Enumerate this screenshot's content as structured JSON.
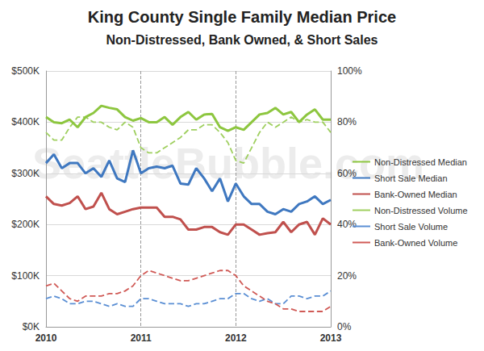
{
  "chart_data": {
    "type": "line",
    "title": "King County Single Family Median Price",
    "subtitle": "Non-Distressed, Bank Owned, & Short Sales",
    "annotations": [
      "SeattleBubble.com"
    ],
    "categories": [
      "2010",
      null,
      null,
      null,
      null,
      null,
      null,
      null,
      null,
      null,
      null,
      null,
      "2011",
      null,
      null,
      null,
      null,
      null,
      null,
      null,
      null,
      null,
      null,
      null,
      "2012",
      null,
      null,
      null,
      null,
      null,
      null,
      null,
      null,
      null,
      null,
      null,
      "2013"
    ],
    "ylim": [
      0,
      500000
    ],
    "yticks": [
      {
        "value": 0,
        "label": "$0K"
      },
      {
        "value": 100000,
        "label": "$100K"
      },
      {
        "value": 200000,
        "label": "$200K"
      },
      {
        "value": 300000,
        "label": "$300K"
      },
      {
        "value": 400000,
        "label": "$400K"
      },
      {
        "value": 500000,
        "label": "$500K"
      }
    ],
    "y2lim": [
      0,
      100
    ],
    "y2ticks": [
      {
        "value": 0,
        "label": "0%"
      },
      {
        "value": 20,
        "label": "20%"
      },
      {
        "value": 40,
        "label": "40%"
      },
      {
        "value": 60,
        "label": "60%"
      },
      {
        "value": 80,
        "label": "80%"
      },
      {
        "value": 100,
        "label": "100%"
      }
    ],
    "grid": true,
    "legend": "right",
    "series": [
      {
        "name": "Non-Distressed Median",
        "color": "#8dc63f",
        "line_style": "solid",
        "values": [
          410000,
          400000,
          398000,
          405000,
          390000,
          410000,
          418000,
          432000,
          428000,
          425000,
          410000,
          403000,
          408000,
          400000,
          400000,
          410000,
          395000,
          410000,
          420000,
          405000,
          415000,
          416000,
          390000,
          383000,
          390000,
          385000,
          400000,
          415000,
          418000,
          428000,
          415000,
          420000,
          400000,
          415000,
          425000,
          405000,
          405000
        ]
      },
      {
        "name": "Short Sale Median",
        "color": "#3f78c0",
        "line_style": "solid",
        "values": [
          320000,
          337000,
          310000,
          320000,
          320000,
          300000,
          310000,
          293000,
          325000,
          290000,
          283000,
          345000,
          300000,
          310000,
          313000,
          310000,
          315000,
          280000,
          278000,
          310000,
          290000,
          265000,
          290000,
          245000,
          280000,
          255000,
          240000,
          240000,
          225000,
          220000,
          230000,
          225000,
          240000,
          245000,
          255000,
          240000,
          248000
        ]
      },
      {
        "name": "Bank-Owned Median",
        "color": "#c0504d",
        "line_style": "solid",
        "values": [
          255000,
          240000,
          237000,
          242000,
          255000,
          230000,
          235000,
          262000,
          230000,
          220000,
          225000,
          230000,
          233000,
          233000,
          233000,
          215000,
          215000,
          210000,
          190000,
          190000,
          195000,
          195000,
          185000,
          180000,
          200000,
          200000,
          190000,
          180000,
          183000,
          185000,
          205000,
          185000,
          200000,
          205000,
          180000,
          212000,
          200000
        ]
      },
      {
        "name": "Non-Distressed Volume",
        "color": "#9fcf5f",
        "line_style": "dashed",
        "axis": "y2",
        "values": [
          76,
          73,
          73,
          78,
          82,
          82,
          80,
          80,
          78,
          77,
          80,
          78,
          70,
          68,
          68,
          70,
          72,
          74,
          77,
          77,
          79,
          79,
          76,
          72,
          65,
          64,
          70,
          76,
          80,
          78,
          80,
          82,
          80,
          81,
          80,
          80,
          76
        ]
      },
      {
        "name": "Short Sale Volume",
        "color": "#5b8fd4",
        "line_style": "dashed",
        "axis": "y2",
        "values": [
          11,
          12,
          11,
          9,
          9,
          10,
          10,
          9,
          8,
          9,
          8,
          8,
          11,
          11,
          10,
          9,
          9,
          9,
          8,
          9,
          9,
          10,
          11,
          11,
          13,
          13,
          11,
          10,
          11,
          9,
          9,
          12,
          12,
          11,
          12,
          12,
          14
        ]
      },
      {
        "name": "Bank-Owned Volume",
        "color": "#d05a56",
        "line_style": "dashed",
        "axis": "y2",
        "values": [
          16,
          17,
          14,
          11,
          10,
          12,
          12,
          12,
          13,
          13,
          14,
          16,
          20,
          22,
          21,
          20,
          19,
          18,
          18,
          19,
          20,
          21,
          22,
          22,
          20,
          16,
          14,
          12,
          10,
          9,
          7,
          7,
          6,
          6,
          6,
          6,
          8
        ]
      }
    ]
  }
}
